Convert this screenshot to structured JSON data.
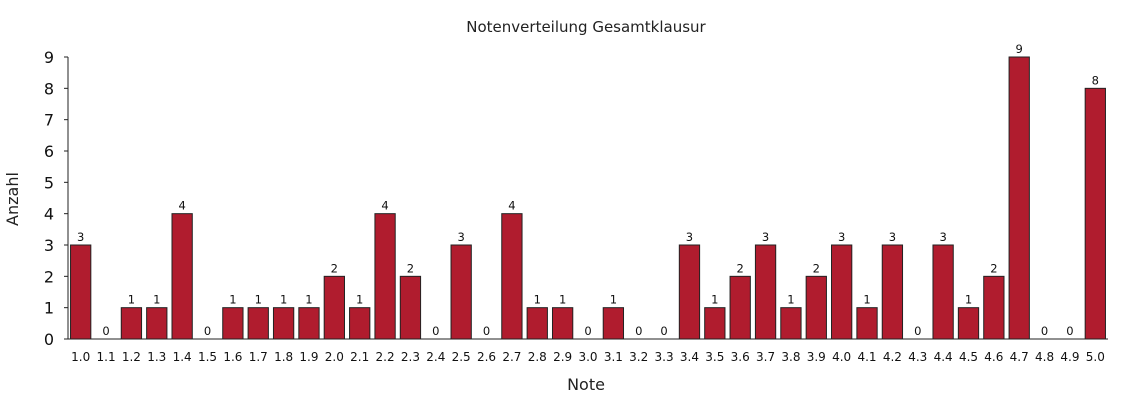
{
  "chart_data": {
    "type": "bar",
    "title": "Notenverteilung Gesamtklausur",
    "xlabel": "Note",
    "ylabel": "Anzahl",
    "categories": [
      "1.0",
      "1.1",
      "1.2",
      "1.3",
      "1.4",
      "1.5",
      "1.6",
      "1.7",
      "1.8",
      "1.9",
      "2.0",
      "2.1",
      "2.2",
      "2.3",
      "2.4",
      "2.5",
      "2.6",
      "2.7",
      "2.8",
      "2.9",
      "3.0",
      "3.1",
      "3.2",
      "3.3",
      "3.4",
      "3.5",
      "3.6",
      "3.7",
      "3.8",
      "3.9",
      "4.0",
      "4.1",
      "4.2",
      "4.3",
      "4.4",
      "4.5",
      "4.6",
      "4.7",
      "4.8",
      "4.9",
      "5.0"
    ],
    "values": [
      3,
      0,
      1,
      1,
      4,
      0,
      1,
      1,
      1,
      1,
      2,
      1,
      4,
      2,
      0,
      3,
      0,
      4,
      1,
      1,
      0,
      1,
      0,
      0,
      3,
      1,
      2,
      3,
      1,
      2,
      3,
      1,
      3,
      0,
      3,
      1,
      2,
      9,
      0,
      0,
      8
    ],
    "ylim": [
      0,
      9
    ],
    "yticks": [
      0,
      1,
      2,
      3,
      4,
      5,
      6,
      7,
      8,
      9
    ],
    "bar_color": "#b01c2e",
    "bar_edge_color": "#222222",
    "grid": false,
    "data_labels": true
  }
}
